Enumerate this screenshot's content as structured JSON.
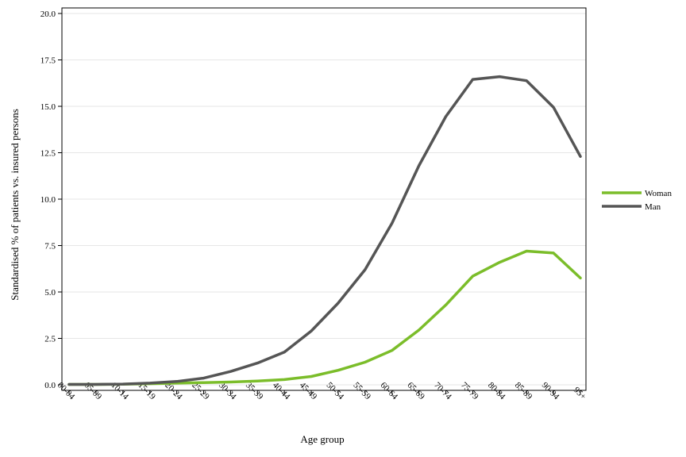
{
  "chart_data": {
    "type": "line",
    "xlabel": "Age group",
    "ylabel": "Standardised % of patients vs. insured persons",
    "categories": [
      "00-04",
      "05-09",
      "10-14",
      "15-19",
      "20-24",
      "25-29",
      "30-34",
      "35-39",
      "40-44",
      "45-49",
      "50-54",
      "55-59",
      "60-64",
      "65-69",
      "70-74",
      "75-79",
      "80-84",
      "85-89",
      "90-94",
      "95+"
    ],
    "ylim": [
      0,
      20
    ],
    "yticks": [
      "0.0",
      "2.5",
      "5.0",
      "7.5",
      "10.0",
      "12.5",
      "15.0",
      "17.5",
      "20.0"
    ],
    "grid": "horizontal",
    "legend_position": "right",
    "series": [
      {
        "name": "Woman",
        "color": "#7bbd2a",
        "values": [
          0.02,
          0.02,
          0.03,
          0.06,
          0.09,
          0.12,
          0.15,
          0.2,
          0.28,
          0.45,
          0.78,
          1.22,
          1.85,
          2.95,
          4.3,
          5.85,
          6.6,
          7.2,
          7.1,
          5.75
        ]
      },
      {
        "name": "Man",
        "color": "#555555",
        "values": [
          0.02,
          0.02,
          0.04,
          0.09,
          0.18,
          0.36,
          0.72,
          1.17,
          1.76,
          2.9,
          4.4,
          6.2,
          8.7,
          11.8,
          14.45,
          16.45,
          16.6,
          16.38,
          14.95,
          12.3
        ]
      }
    ]
  }
}
